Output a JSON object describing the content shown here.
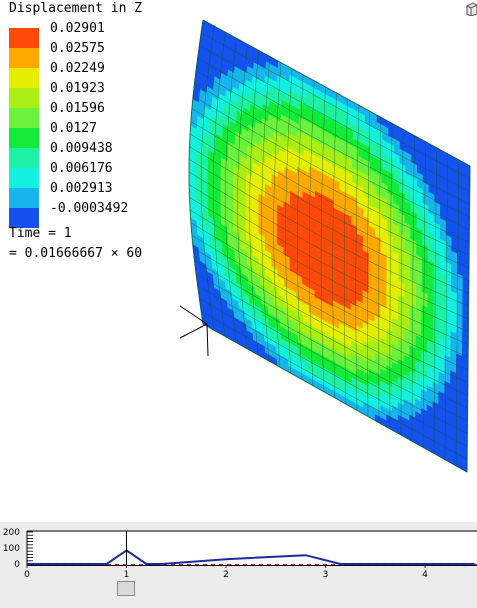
{
  "legend": {
    "title": "Displacement in Z",
    "entries": [
      {
        "label": "0.02901",
        "color": "#ff4a0a"
      },
      {
        "label": "0.02575",
        "color": "#ffa800"
      },
      {
        "label": "0.02249",
        "color": "#e6ee00"
      },
      {
        "label": "0.01923",
        "color": "#a9ef14"
      },
      {
        "label": "0.01596",
        "color": "#6cf13c"
      },
      {
        "label": "0.0127",
        "color": "#14ea38"
      },
      {
        "label": "0.009438",
        "color": "#1ef0a4"
      },
      {
        "label": "0.006176",
        "color": "#14f0e0"
      },
      {
        "label": "0.002913",
        "color": "#18b4ee"
      },
      {
        "label": "-0.0003492",
        "color": "#1452ef"
      }
    ]
  },
  "time": {
    "label": "Time = 1",
    "expression": "= 0.01666667 × 60"
  },
  "timeline": {
    "y_ticks": [
      "200",
      "100",
      "0"
    ],
    "x_ticks": [
      "0",
      "1",
      "2",
      "3",
      "4"
    ],
    "curve_color": "#1e2a9a",
    "marker_color": "#cc2222"
  },
  "icons": {
    "corner": "view-cube-icon",
    "axes": "coordinate-axes-icon"
  }
}
